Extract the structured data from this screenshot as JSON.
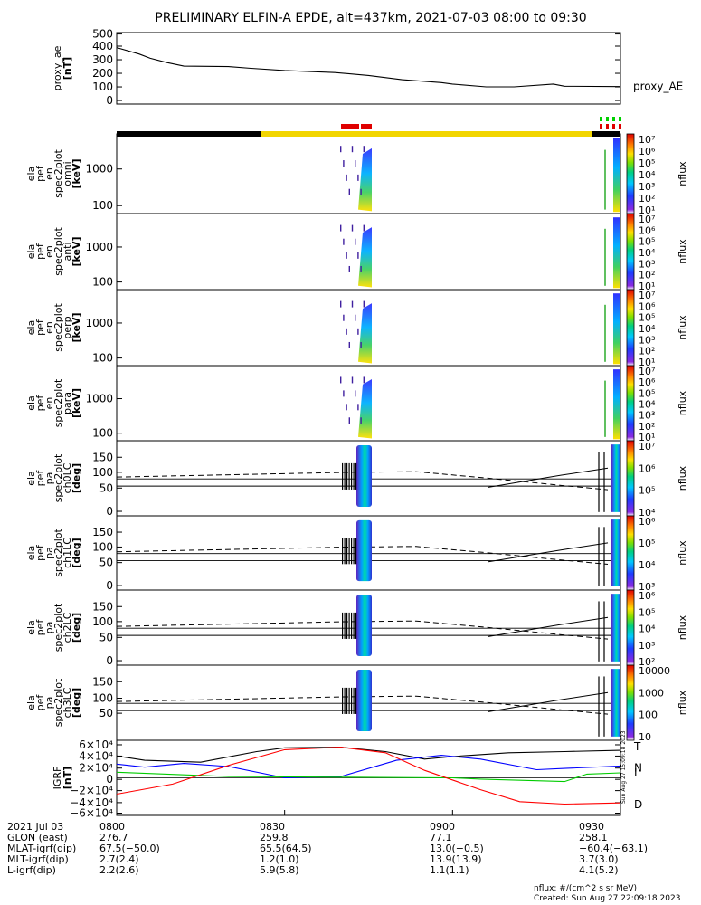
{
  "chart_data": {
    "type": "line",
    "title": "PRELIMINARY ELFIN-A EPDE, alt=437km, 2021-07-03 08:00 to 09:30",
    "x_range": [
      "08:00",
      "09:30"
    ],
    "panels": [
      {
        "id": "proxy_ae",
        "type": "line",
        "ylabel": [
          "proxy_ae",
          "[nT]"
        ],
        "yticks": [
          "500",
          "400",
          "300",
          "200",
          "100",
          "0"
        ],
        "ylim": [
          0,
          500
        ],
        "series": [
          {
            "name": "proxy_AE",
            "x": [
              "08:00",
              "08:04",
              "08:06",
              "08:09",
              "08:12",
              "08:20",
              "08:24",
              "08:30",
              "08:39",
              "08:45",
              "08:51",
              "08:58",
              "09:00",
              "09:06",
              "09:11",
              "09:18",
              "09:20",
              "09:30"
            ],
            "y": [
              395,
              350,
              320,
              290,
              265,
              262,
              250,
              235,
              220,
              200,
              170,
              150,
              140,
              120,
              120,
              140,
              125,
              122
            ]
          }
        ]
      },
      {
        "id": "en_omni",
        "type": "heatmap",
        "ylabel": [
          "ela",
          "pef",
          "en",
          "spec2plot",
          "omni",
          "[keV]"
        ],
        "yticks": [
          "1000",
          "100"
        ],
        "colorbar": {
          "label": "nflux",
          "ticks": [
            "10⁷",
            "10⁶",
            "10⁵",
            "10⁴",
            "10³",
            "10²",
            "10¹"
          ]
        }
      },
      {
        "id": "en_anti",
        "type": "heatmap",
        "ylabel": [
          "ela",
          "pef",
          "en",
          "spec2plot",
          "anti",
          "[keV]"
        ],
        "yticks": [
          "1000",
          "100"
        ],
        "colorbar": {
          "label": "nflux",
          "ticks": [
            "10⁷",
            "10⁶",
            "10⁵",
            "10⁴",
            "10³",
            "10²",
            "10¹"
          ]
        }
      },
      {
        "id": "en_perp",
        "type": "heatmap",
        "ylabel": [
          "ela",
          "pef",
          "en",
          "spec2plot",
          "perp",
          "[keV]"
        ],
        "yticks": [
          "1000",
          "100"
        ],
        "colorbar": {
          "label": "nflux",
          "ticks": [
            "10⁷",
            "10⁶",
            "10⁵",
            "10⁴",
            "10³",
            "10²",
            "10¹"
          ]
        }
      },
      {
        "id": "en_para",
        "type": "heatmap",
        "ylabel": [
          "ela",
          "pef",
          "en",
          "spec2plot",
          "para",
          "[keV]"
        ],
        "yticks": [
          "1000",
          "100"
        ],
        "colorbar": {
          "label": "nflux",
          "ticks": [
            "10⁷",
            "10⁶",
            "10⁵",
            "10⁴",
            "10³",
            "10²",
            "10¹"
          ]
        }
      },
      {
        "id": "pa_ch0",
        "type": "heatmap",
        "ylabel": [
          "ela",
          "pef",
          "pa",
          "spec2plot",
          "ch0LC",
          "[deg]"
        ],
        "yticks": [
          "150",
          "100",
          "50",
          "0"
        ],
        "colorbar": {
          "label": "nflux",
          "ticks": [
            "10⁷",
            "10⁶",
            "10⁵",
            "10⁴"
          ]
        }
      },
      {
        "id": "pa_ch1",
        "type": "heatmap",
        "ylabel": [
          "ela",
          "pef",
          "pa",
          "spec2plot",
          "ch1LC",
          "[deg]"
        ],
        "yticks": [
          "150",
          "100",
          "50",
          "0"
        ],
        "colorbar": {
          "label": "nflux",
          "ticks": [
            "10⁶",
            "10⁵",
            "10⁴",
            "10³"
          ]
        }
      },
      {
        "id": "pa_ch2",
        "type": "heatmap",
        "ylabel": [
          "ela",
          "pef",
          "pa",
          "spec2plot",
          "ch2LC",
          "[deg]"
        ],
        "yticks": [
          "150",
          "100",
          "50",
          "0"
        ],
        "colorbar": {
          "label": "nflux",
          "ticks": [
            "10⁶",
            "10⁵",
            "10⁴",
            "10³",
            "10²"
          ]
        }
      },
      {
        "id": "pa_ch3",
        "type": "heatmap",
        "ylabel": [
          "ela",
          "pef",
          "pa",
          "spec2plot",
          "ch3LC",
          "[deg]"
        ],
        "yticks": [
          "150",
          "100",
          "50"
        ],
        "colorbar": {
          "label": "nflux",
          "ticks": [
            "10000",
            "1000",
            "100",
            "10"
          ]
        }
      },
      {
        "id": "igrf",
        "type": "line",
        "ylabel": [
          "IGRF",
          "[nT]"
        ],
        "yticks": [
          "6×10⁴",
          "4×10⁴",
          "2×10⁴",
          "0",
          "−2×10⁴",
          "−4×10⁴",
          "−6×10⁴"
        ],
        "ylim": [
          -60000,
          60000
        ],
        "series": [
          {
            "name": "T",
            "color": "#000000",
            "x": [
              "08:00",
              "08:05",
              "08:15",
              "08:25",
              "08:30",
              "08:40",
              "08:48",
              "08:55",
              "09:00",
              "09:10",
              "09:20",
              "09:30"
            ],
            "y": [
              35000,
              28000,
              25000,
              42000,
              48000,
              49000,
              42000,
              30000,
              34000,
              40000,
              42000,
              44000
            ]
          },
          {
            "name": "N",
            "color": "#0000ff",
            "x": [
              "08:00",
              "08:05",
              "08:12",
              "08:20",
              "08:30",
              "08:40",
              "08:50",
              "08:58",
              "09:05",
              "09:15",
              "09:20",
              "09:30"
            ],
            "y": [
              22000,
              17000,
              23000,
              18000,
              0,
              2000,
              28000,
              36000,
              30000,
              13000,
              15000,
              19000
            ]
          },
          {
            "name": "L",
            "color": "#00cc00",
            "x": [
              "08:00",
              "08:20",
              "08:40",
              "09:00",
              "09:05",
              "09:20",
              "09:24",
              "09:30"
            ],
            "y": [
              9000,
              2000,
              1000,
              0,
              -2000,
              -6000,
              6000,
              8000
            ]
          },
          {
            "name": "D",
            "color": "#ff0000",
            "x": [
              "08:00",
              "08:10",
              "08:20",
              "08:30",
              "08:40",
              "08:48",
              "08:55",
              "09:05",
              "09:12",
              "09:20",
              "09:30"
            ],
            "y": [
              -26000,
              -10000,
              20000,
              45000,
              49000,
              40000,
              12000,
              -19000,
              -38000,
              -42000,
              -40000
            ]
          }
        ]
      }
    ]
  },
  "footer": {
    "rows": [
      [
        "2021 Jul 03",
        "0800",
        "0830",
        "0900",
        "0930"
      ],
      [
        "GLON (east)",
        "276.7",
        "259.8",
        "77.1",
        "258.1"
      ],
      [
        "MLAT-igrf(dip)",
        "67.5(−50.0)",
        "65.5(64.5)",
        "13.0(−0.5)",
        "−60.4(−63.1)"
      ],
      [
        "MLT-igrf(dip)",
        "2.7(2.4)",
        "1.2(1.0)",
        "13.9(13.9)",
        "3.7(3.0)"
      ],
      [
        "L-igrf(dip)",
        "2.2(2.6)",
        "5.9(5.8)",
        "1.1(1.1)",
        "4.1(5.2)"
      ]
    ]
  },
  "credit": {
    "units": "nflux: #/(cm^2 s sr MeV)",
    "created": "Created: Sun Aug 27 22:09:18 2023"
  },
  "rotated_stamp": "Sun Aug 27 15:09:18 2023",
  "colors": {
    "status_black": "#000000",
    "status_yellow": "#f2d500",
    "marker_red": "#e00000",
    "marker_green": "#00d000"
  }
}
